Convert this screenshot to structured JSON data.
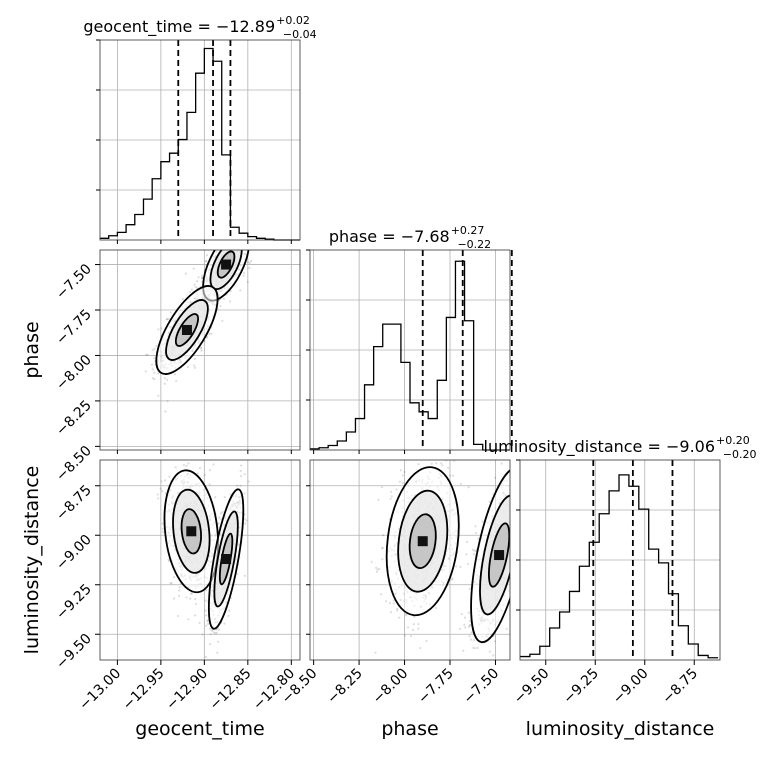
{
  "chart_data": {
    "type": "corner",
    "parameters": [
      "geocent_time",
      "phase",
      "luminosity_distance"
    ],
    "axis_labels": {
      "x": [
        "geocent_time",
        "phase",
        "luminosity_distance"
      ],
      "y": [
        "",
        "phase",
        "luminosity_distance"
      ]
    },
    "diagonal_titles": [
      {
        "prefix": "geocent_time = ",
        "value": "−12.89",
        "upper": "+0.02",
        "lower": "−0.04"
      },
      {
        "prefix": "phase = ",
        "value": "−7.68",
        "upper": "+0.27",
        "lower": "−0.22"
      },
      {
        "prefix": "luminosity_distance = ",
        "value": "−9.06",
        "upper": "+0.20",
        "lower": "−0.20"
      }
    ],
    "ranges": [
      [
        -13.02,
        -12.79
      ],
      [
        -8.52,
        -7.42
      ],
      [
        -9.63,
        -8.62
      ]
    ],
    "ticks": [
      {
        "values": [
          -13.0,
          -12.95,
          -12.9,
          -12.85,
          -12.8
        ],
        "labels": [
          "−13.00",
          "−12.95",
          "−12.90",
          "−12.85",
          "−12.80"
        ]
      },
      {
        "values": [
          -8.5,
          -8.25,
          -8.0,
          -7.75,
          -7.5
        ],
        "labels": [
          "−8.50",
          "−8.25",
          "−8.00",
          "−7.75",
          "−7.50"
        ]
      },
      {
        "values": [
          -9.5,
          -9.25,
          -9.0,
          -8.75
        ],
        "labels": [
          "−9.50",
          "−9.25",
          "−9.00",
          "−8.75"
        ]
      }
    ],
    "quantiles": [
      [
        -12.93,
        -12.89,
        -12.87
      ],
      [
        -7.9,
        -7.68,
        -7.41
      ],
      [
        -9.26,
        -9.06,
        -8.86
      ]
    ],
    "histograms": [
      {
        "edges_start": -13.02,
        "bin_width": 0.01,
        "counts": [
          2,
          5,
          9,
          18,
          30,
          48,
          72,
          92,
          102,
          118,
          150,
          196,
          225,
          210,
          100,
          15,
          8,
          4,
          2,
          1,
          0,
          0,
          0
        ],
        "ymax": 235
      },
      {
        "edges_start": -8.52,
        "bin_width": 0.05,
        "counts": [
          1,
          2,
          4,
          8,
          16,
          28,
          58,
          92,
          112,
          112,
          78,
          42,
          34,
          28,
          62,
          118,
          168,
          115,
          5,
          0,
          0,
          0
        ],
        "ymax": 178
      },
      {
        "edges_start": -9.63,
        "bin_width": 0.05,
        "counts": [
          3,
          5,
          12,
          28,
          42,
          60,
          82,
          103,
          128,
          148,
          162,
          152,
          132,
          97,
          85,
          58,
          30,
          14,
          4,
          2
        ],
        "ymax": 175
      }
    ],
    "grid": true
  }
}
